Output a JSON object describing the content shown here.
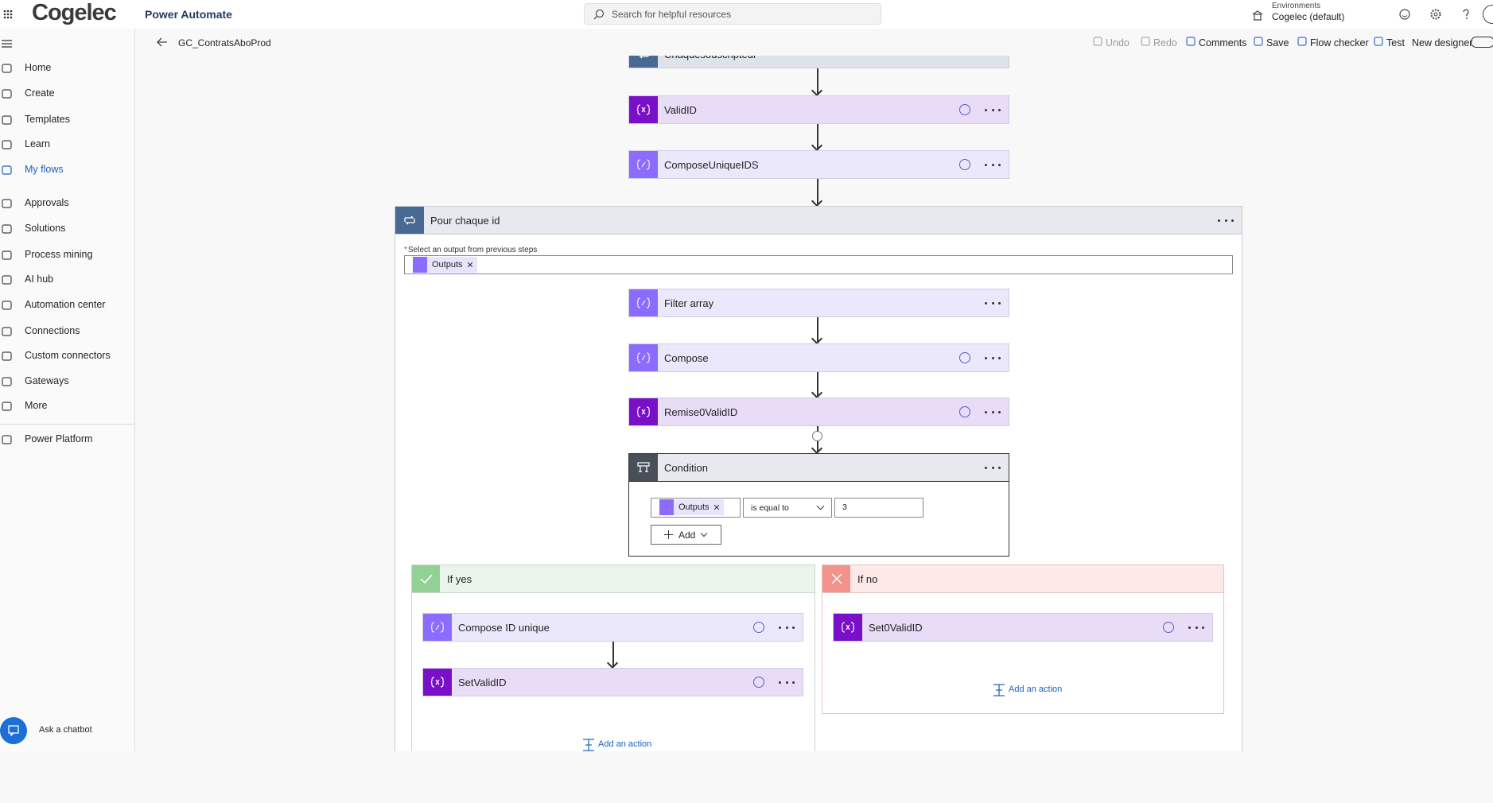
{
  "header": {
    "brand": "Cogelec",
    "app": "Power Automate",
    "search_placeholder": "Search for helpful resources",
    "env_label": "Environments",
    "env_name": "Cogelec (default)"
  },
  "toolbar": {
    "flow_name": "GC_ContratsAboProd",
    "actions": [
      "Undo",
      "Redo",
      "Comments",
      "Save",
      "Flow checker",
      "Test",
      "New designer"
    ]
  },
  "nav": {
    "items": [
      "Home",
      "Create",
      "Templates",
      "Learn",
      "My flows",
      "Approvals",
      "Solutions",
      "Process mining",
      "AI hub",
      "Automation center",
      "Connections",
      "Custom connectors",
      "Gateways",
      "More",
      "Power Platform"
    ],
    "chatbot": "Ask a chatbot"
  },
  "canvas": {
    "top_step": "Chaquesouscripteur",
    "steps": [
      "ValidID",
      "ComposeUniqueIDS"
    ],
    "loop": {
      "title": "Pour chaque id",
      "required_mark": "*",
      "field_label": "Select an output from previous steps",
      "token": "Outputs",
      "steps": [
        "Filter array",
        "Compose",
        "Remise0ValidID"
      ],
      "condition": {
        "title": "Condition",
        "left": "Outputs",
        "operator": "is equal to",
        "right": "3",
        "add": "Add"
      },
      "if_yes": {
        "title": "If yes",
        "steps": [
          "Compose ID unique",
          "SetValidID"
        ],
        "add_action": "Add an action"
      },
      "if_no": {
        "title": "If no",
        "steps": [
          "Set0ValidID"
        ],
        "add_action": "Add an action"
      }
    }
  }
}
